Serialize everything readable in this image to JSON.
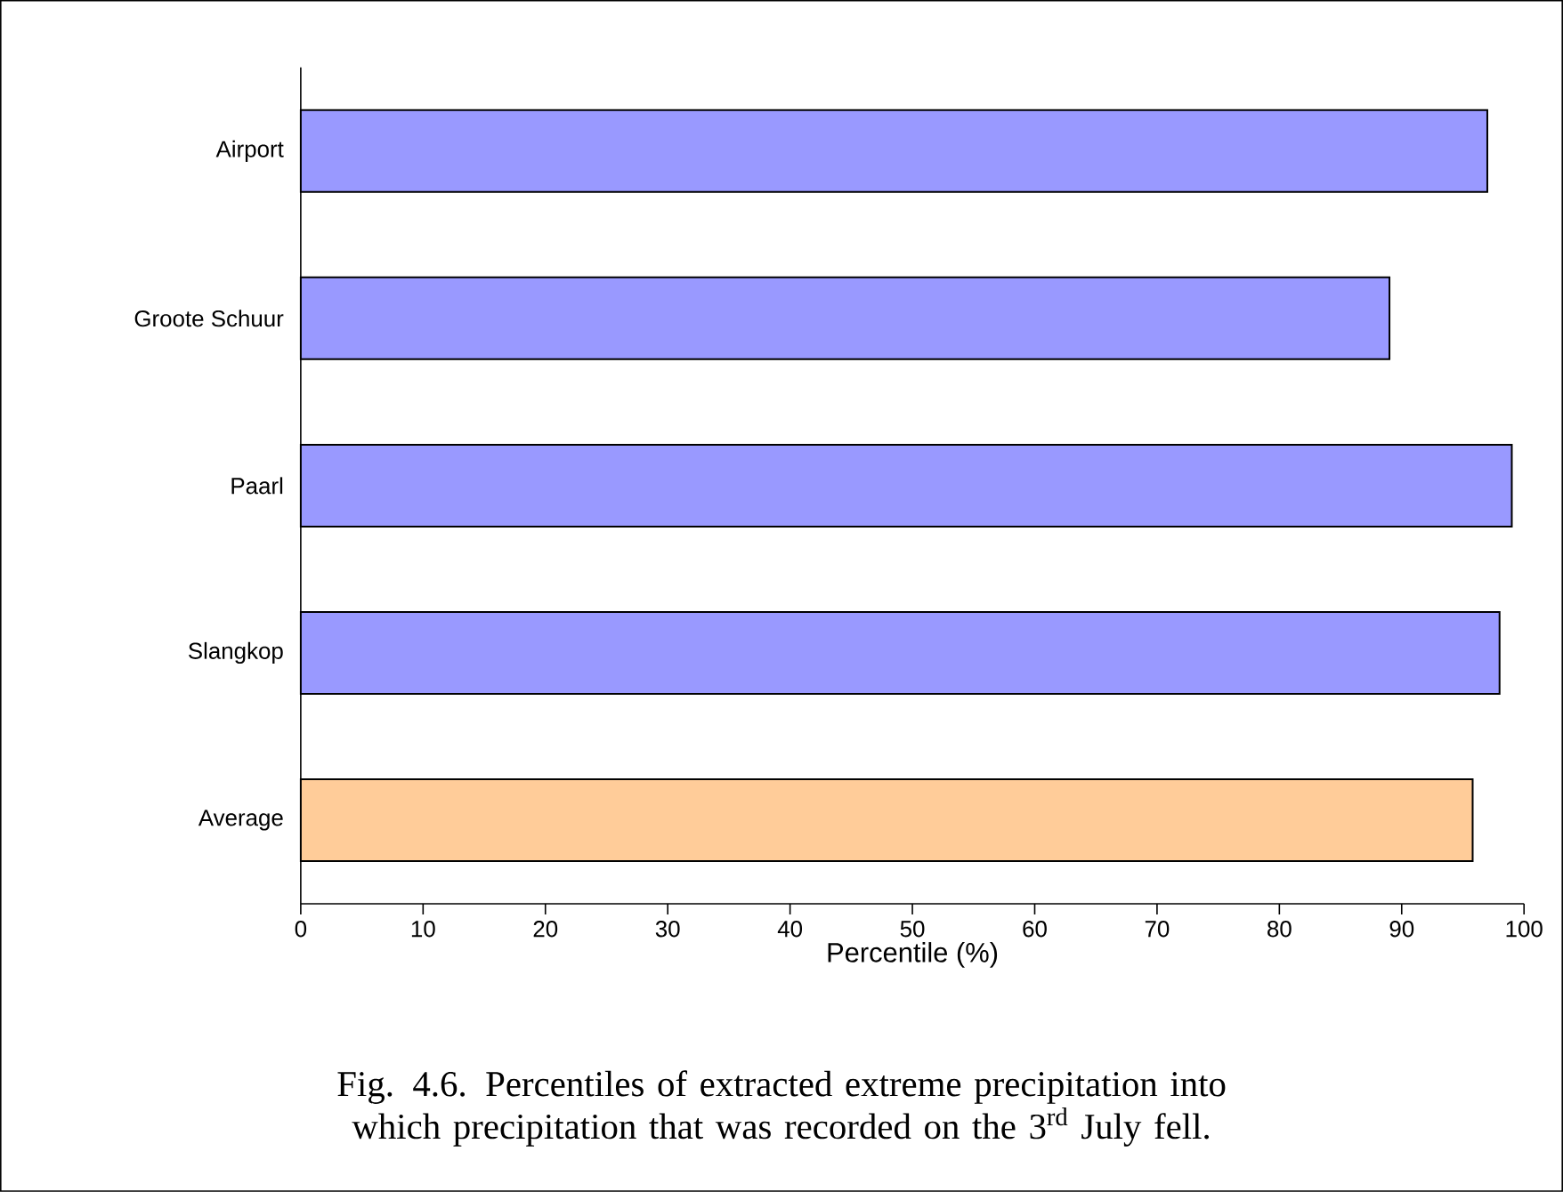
{
  "chart_data": {
    "type": "bar",
    "orientation": "horizontal",
    "categories": [
      "Airport",
      "Groote Schuur",
      "Paarl",
      "Slangkop",
      "Average"
    ],
    "values": [
      97,
      89,
      99,
      98,
      95.8
    ],
    "colors": [
      "#9999ff",
      "#9999ff",
      "#9999ff",
      "#9999ff",
      "#ffcc99"
    ],
    "xlabel": "Percentile (%)",
    "xlim": [
      0,
      100
    ],
    "xticks": [
      0,
      10,
      20,
      30,
      40,
      50,
      60,
      70,
      80,
      90,
      100
    ],
    "annotations": [
      "Fig. 4.6. Percentiles of extracted extreme precipitation into which precipitation that was recorded on the 3$^{rd}$ July fell."
    ]
  }
}
